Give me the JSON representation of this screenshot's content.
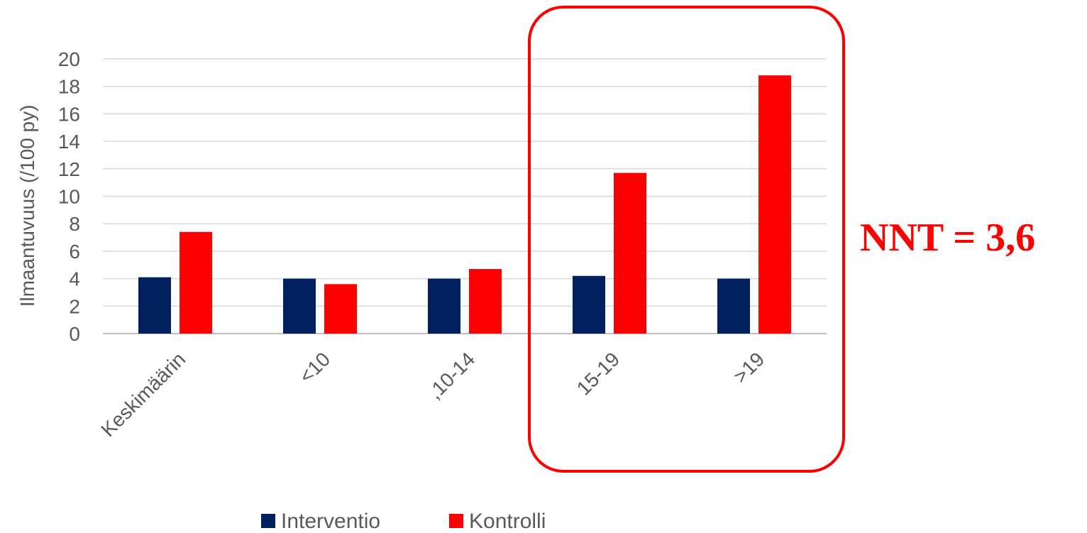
{
  "chart_data": {
    "type": "bar",
    "ylabel": "Ilmaantuvuus (/100 py)",
    "xlabel": "",
    "ylim": [
      0,
      20
    ],
    "yticks": [
      0,
      2,
      4,
      6,
      8,
      10,
      12,
      14,
      16,
      18,
      20
    ],
    "grid": true,
    "legend_position": "bottom",
    "categories": [
      "Keskimäärin",
      "<10",
      ",10-14",
      "15-19",
      ">19"
    ],
    "series": [
      {
        "name": "Interventio",
        "color": "#002060",
        "values": [
          4.1,
          4.0,
          4.0,
          4.2,
          4.0
        ]
      },
      {
        "name": "Kontrolli",
        "color": "#ff0000",
        "values": [
          7.4,
          3.6,
          4.7,
          11.7,
          18.8
        ]
      }
    ],
    "highlight": {
      "categories": [
        "15-19",
        ">19"
      ],
      "color": "#ff0000"
    },
    "annotation": "NNT = 3,6"
  }
}
